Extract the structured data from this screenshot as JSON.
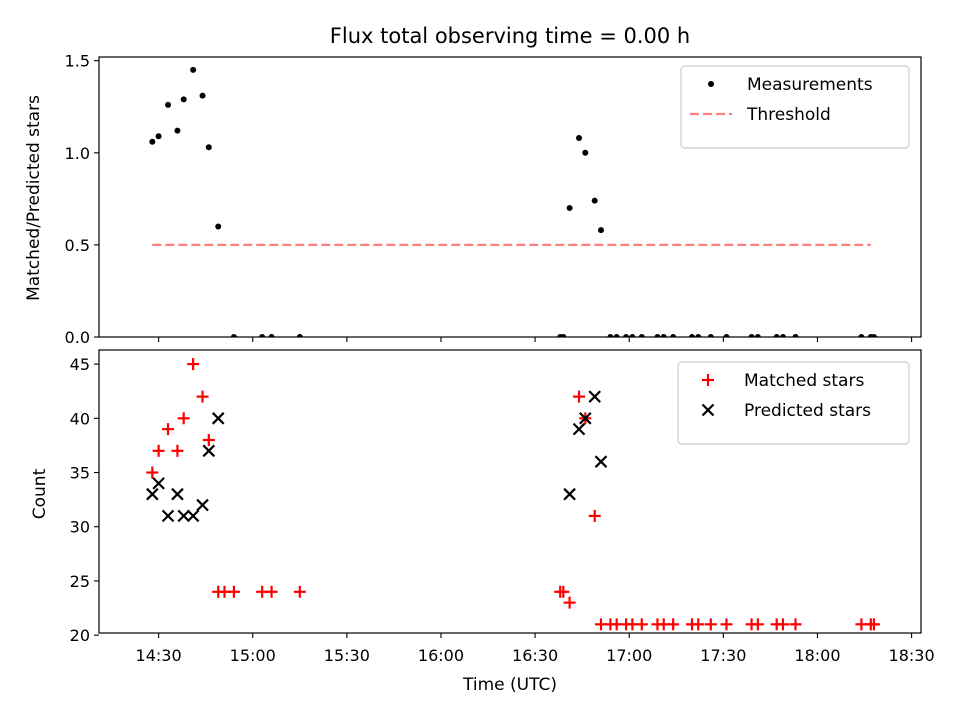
{
  "figure": {
    "title": "Flux total observing time = 0.00 h"
  },
  "chart_data": [
    {
      "type": "scatter",
      "title": "Flux total observing time = 0.00 h",
      "xlabel": "",
      "ylabel": "Matched/Predicted stars",
      "xlim": [
        "14:11",
        "18:33"
      ],
      "ylim": [
        0,
        1.52
      ],
      "yticks": [
        0.0,
        0.5,
        1.0,
        1.5
      ],
      "ytick_labels": [
        "0.0",
        "0.5",
        "1.0",
        "1.5"
      ],
      "xticks": [
        "14:30",
        "15:00",
        "15:30",
        "16:00",
        "16:30",
        "17:00",
        "17:30",
        "18:00",
        "18:30"
      ],
      "show_xtick_labels": false,
      "grid": false,
      "legend_position": "top-right",
      "series": [
        {
          "name": "Measurements",
          "kind": "scatter",
          "marker": "dot",
          "color": "#000000",
          "x": [
            "14:28",
            "14:30",
            "14:33",
            "14:36",
            "14:38",
            "14:41",
            "14:44",
            "14:46",
            "14:49",
            "14:54",
            "15:03",
            "15:06",
            "15:15",
            "16:38",
            "16:39",
            "16:41",
            "16:44",
            "16:46",
            "16:49",
            "16:51",
            "16:54",
            "16:56",
            "16:59",
            "17:01",
            "17:04",
            "17:09",
            "17:11",
            "17:14",
            "17:20",
            "17:22",
            "17:26",
            "17:31",
            "17:39",
            "17:41",
            "17:47",
            "17:49",
            "17:53",
            "18:14",
            "18:17",
            "18:18"
          ],
          "y": [
            1.06,
            1.09,
            1.26,
            1.12,
            1.29,
            1.45,
            1.31,
            1.03,
            0.6,
            0,
            0,
            0,
            0,
            0,
            0,
            0.7,
            1.08,
            1.0,
            0.74,
            0.58,
            0,
            0,
            0,
            0,
            0,
            0,
            0,
            0,
            0,
            0,
            0,
            0,
            0,
            0,
            0,
            0,
            0,
            0,
            0,
            0
          ]
        },
        {
          "name": "Threshold",
          "kind": "line",
          "style": "dashed",
          "color": "#ff7f7f",
          "x": [
            "14:28",
            "18:17"
          ],
          "y": [
            0.5,
            0.5
          ]
        }
      ]
    },
    {
      "type": "scatter",
      "title": "",
      "xlabel": "Time (UTC)",
      "ylabel": "Count",
      "xlim": [
        "14:11",
        "18:33"
      ],
      "ylim": [
        20.2,
        46.3
      ],
      "yticks": [
        20,
        25,
        30,
        35,
        40,
        45
      ],
      "ytick_labels": [
        "20",
        "25",
        "30",
        "35",
        "40",
        "45"
      ],
      "xticks": [
        "14:30",
        "15:00",
        "15:30",
        "16:00",
        "16:30",
        "17:00",
        "17:30",
        "18:00",
        "18:30"
      ],
      "xtick_labels": [
        "14:30",
        "15:00",
        "15:30",
        "16:00",
        "16:30",
        "17:00",
        "17:30",
        "18:00",
        "18:30"
      ],
      "grid": false,
      "legend_position": "top-right",
      "series": [
        {
          "name": "Matched stars",
          "kind": "scatter",
          "marker": "plus",
          "color": "#ff0000",
          "x": [
            "14:28",
            "14:30",
            "14:33",
            "14:36",
            "14:38",
            "14:41",
            "14:44",
            "14:46",
            "14:49",
            "14:51",
            "14:54",
            "15:03",
            "15:06",
            "15:15",
            "16:38",
            "16:39",
            "16:41",
            "16:44",
            "16:46",
            "16:49",
            "16:51",
            "16:54",
            "16:56",
            "16:59",
            "17:01",
            "17:04",
            "17:09",
            "17:11",
            "17:14",
            "17:20",
            "17:22",
            "17:26",
            "17:31",
            "17:39",
            "17:41",
            "17:47",
            "17:49",
            "17:53",
            "18:14",
            "18:17",
            "18:18"
          ],
          "y": [
            35,
            37,
            39,
            37,
            40,
            45,
            42,
            38,
            24,
            24,
            24,
            24,
            24,
            24,
            24,
            24,
            23,
            42,
            40,
            31,
            21,
            21,
            21,
            21,
            21,
            21,
            21,
            21,
            21,
            21,
            21,
            21,
            21,
            21,
            21,
            21,
            21,
            21,
            21,
            21,
            21
          ]
        },
        {
          "name": "Predicted stars",
          "kind": "scatter",
          "marker": "x",
          "color": "#000000",
          "x": [
            "14:28",
            "14:30",
            "14:33",
            "14:36",
            "14:38",
            "14:41",
            "14:44",
            "14:46",
            "14:49",
            "16:41",
            "16:44",
            "16:46",
            "16:49",
            "16:51"
          ],
          "y": [
            33,
            34,
            31,
            33,
            31,
            31,
            32,
            37,
            40,
            33,
            39,
            40,
            42,
            36
          ]
        }
      ]
    }
  ]
}
